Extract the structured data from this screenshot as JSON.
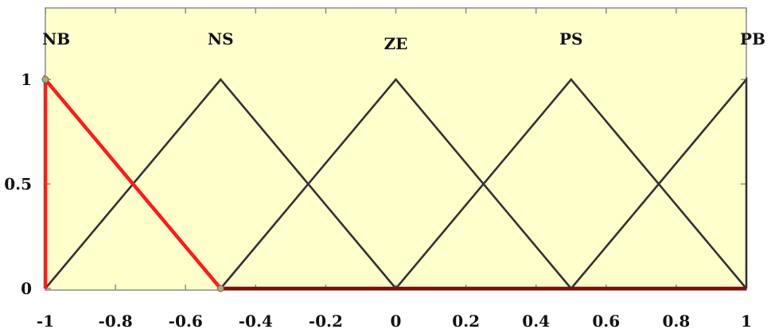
{
  "chart_data": {
    "type": "line",
    "title": "",
    "xlabel": "",
    "ylabel": "",
    "xlim": [
      -1,
      1
    ],
    "ylim": [
      0,
      1
    ],
    "x_ticks": [
      -1,
      -0.8,
      -0.6,
      -0.4,
      -0.2,
      0,
      0.2,
      0.4,
      0.6,
      0.8,
      1
    ],
    "x_tick_labels": [
      "-1",
      "-0.8",
      "-0.6",
      "-0.4",
      "-0.2",
      "0",
      "0.2",
      "0.4",
      "0.6",
      "0.8",
      "1"
    ],
    "y_ticks": [
      0,
      0.5,
      1
    ],
    "y_tick_labels": [
      "0",
      "0.5",
      "1"
    ],
    "grid": false,
    "background_color": "#ffffcc",
    "series": [
      {
        "name": "NB",
        "color": "#ff1a1a",
        "highlighted": true,
        "x": [
          -1,
          -1,
          -0.5
        ],
        "y": [
          0,
          1,
          0
        ]
      },
      {
        "name": "NS",
        "color": "#333333",
        "highlighted": false,
        "x": [
          -1,
          -0.5,
          0
        ],
        "y": [
          0,
          1,
          0
        ]
      },
      {
        "name": "ZE",
        "color": "#333333",
        "highlighted": false,
        "x": [
          -0.5,
          0,
          0.5
        ],
        "y": [
          0,
          1,
          0
        ]
      },
      {
        "name": "PS",
        "color": "#333333",
        "highlighted": false,
        "x": [
          0,
          0.5,
          1
        ],
        "y": [
          0,
          1,
          0
        ]
      },
      {
        "name": "PB",
        "color": "#333333",
        "highlighted": false,
        "x": [
          0.5,
          1,
          1
        ],
        "y": [
          0,
          1,
          0
        ]
      }
    ]
  }
}
